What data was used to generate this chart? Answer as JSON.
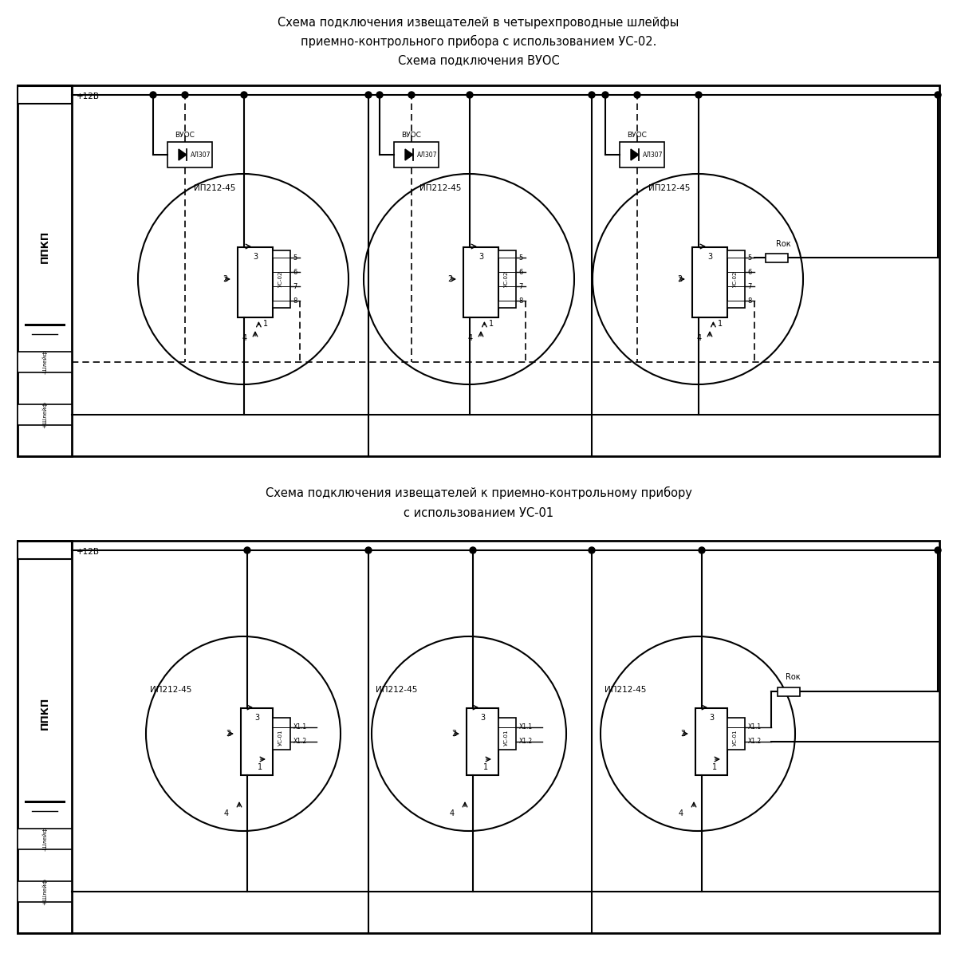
{
  "title1_line1": "Схема подключения извещателей в четырехпроводные шлейфы",
  "title1_line2": "приемно-контрольного прибора с использованием УС-02.",
  "title1_line3": "Схема подключения ВУОС",
  "title2_line1": "Схема подключения извещателей к приемно-контрольному прибору",
  "title2_line2": "с использованием УС-01",
  "bg_color": "#ffffff",
  "line_color": "#000000",
  "text_color": "#000000"
}
